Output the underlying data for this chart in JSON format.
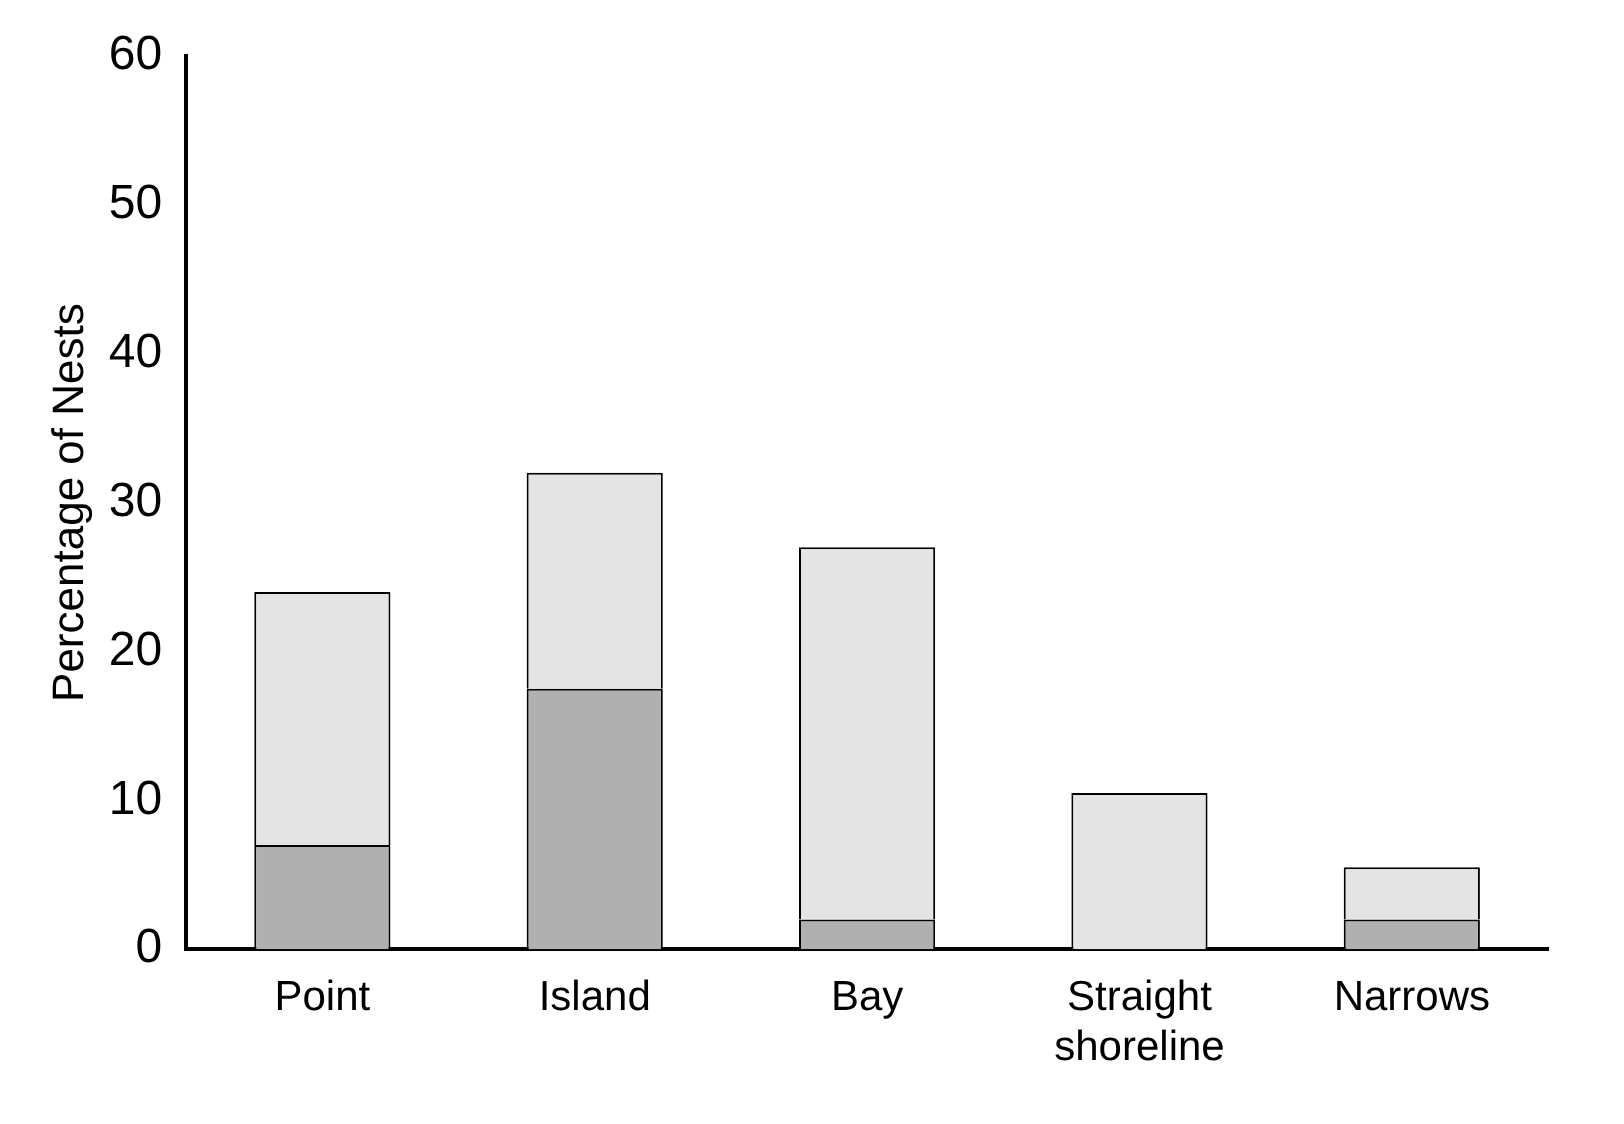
{
  "chart_data": {
    "type": "bar",
    "ylabel": "Percentage of Nests",
    "categories": [
      "Point",
      "Island",
      "Bay",
      "Straight shoreline",
      "Narrows"
    ],
    "stacked": true,
    "series": [
      {
        "color": "#b0b0b0",
        "values": [
          7,
          17.5,
          2,
          0,
          2
        ]
      },
      {
        "color": "#e4e4e4",
        "values": [
          17,
          14.5,
          25,
          10.5,
          3.5
        ]
      }
    ],
    "ylim": [
      0,
      60
    ],
    "yticks": [
      0,
      10,
      20,
      30,
      40,
      50,
      60
    ],
    "grid": false,
    "legend": false
  }
}
